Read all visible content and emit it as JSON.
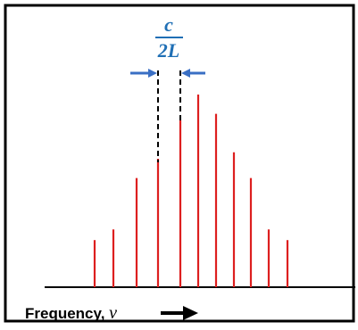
{
  "spacing_label": {
    "numerator": "c",
    "denominator": "2L",
    "color": "#1f6fb5"
  },
  "axis": {
    "label": "Frequency, ",
    "symbol": "ν"
  },
  "modes": {
    "color": "#dd1f1f",
    "relative_heights": [
      0.22,
      0.27,
      0.51,
      0.6,
      0.78,
      0.9,
      0.81,
      0.63,
      0.51,
      0.27,
      0.22
    ]
  },
  "colors": {
    "frame": "#000000",
    "arrow": "#3a6fc4",
    "guide": "#000000"
  }
}
